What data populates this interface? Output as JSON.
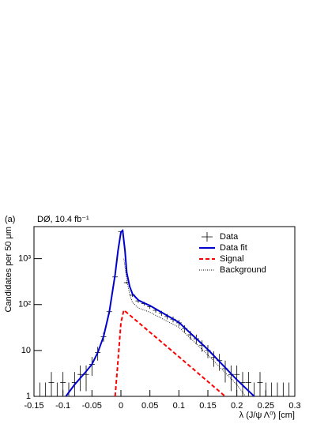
{
  "chart_data": {
    "type": "line",
    "panel": "(a)",
    "title": "DØ, 10.4 fb⁻¹",
    "xlabel": "λ (J/ψ Λ⁰) [cm]",
    "ylabel": "Candidates per 50 μm",
    "xlim": [
      -0.15,
      0.3
    ],
    "xticks": [
      -0.15,
      -0.1,
      -0.05,
      0,
      0.05,
      0.1,
      0.15,
      0.2,
      0.25,
      0.3
    ],
    "ylim": [
      1,
      5000
    ],
    "yscale": "log",
    "yticks": [
      1,
      10,
      {
        "value": 100,
        "label": "10²"
      },
      {
        "value": 1000,
        "label": "10³"
      }
    ],
    "legend": "upper right",
    "series": [
      {
        "name": "Data",
        "color": "#000000",
        "style": "points",
        "x": [
          -0.14,
          -0.13,
          -0.12,
          -0.11,
          -0.1,
          -0.09,
          -0.08,
          -0.07,
          -0.06,
          -0.05,
          -0.04,
          -0.03,
          -0.02,
          -0.01,
          0,
          0.01,
          0.02,
          0.03,
          0.04,
          0.05,
          0.06,
          0.07,
          0.08,
          0.09,
          0.1,
          0.11,
          0.12,
          0.13,
          0.14,
          0.15,
          0.16,
          0.17,
          0.18,
          0.19,
          0.2,
          0.21,
          0.22,
          0.23,
          0.24,
          0.25,
          0.26,
          0.27,
          0.28,
          0.29
        ],
        "values": [
          1,
          1,
          2,
          1,
          2,
          1,
          2,
          3,
          3,
          5,
          9,
          20,
          70,
          400,
          3900,
          300,
          160,
          120,
          105,
          90,
          75,
          65,
          55,
          48,
          40,
          30,
          22,
          18,
          13,
          10,
          7,
          6,
          4,
          3,
          3,
          2,
          2,
          1,
          2,
          1,
          1,
          1,
          1,
          1
        ],
        "errors": [
          1,
          1,
          1.4,
          1,
          1.4,
          1,
          1.4,
          1.7,
          1.7,
          2.2,
          3,
          4.5,
          8.4,
          20,
          62,
          17,
          13,
          11,
          10,
          9.5,
          8.7,
          8,
          7.4,
          6.9,
          6.3,
          5.5,
          4.7,
          4.2,
          3.6,
          3.2,
          2.6,
          2.4,
          2,
          1.7,
          1.7,
          1.4,
          1.4,
          1,
          1.4,
          1,
          1,
          1,
          1,
          1
        ]
      },
      {
        "name": "Data fit",
        "color": "#0000cc",
        "style": "solid",
        "x": [
          -0.095,
          -0.08,
          -0.06,
          -0.05,
          -0.04,
          -0.03,
          -0.02,
          -0.01,
          -0.005,
          0,
          0.003,
          0.007,
          0.01,
          0.015,
          0.02,
          0.03,
          0.04,
          0.05,
          0.1,
          0.15,
          0.2,
          0.23
        ],
        "values": [
          1,
          1.8,
          3.5,
          5,
          9,
          20,
          70,
          450,
          1500,
          3800,
          4100,
          1500,
          500,
          250,
          170,
          125,
          108,
          95,
          41,
          10.5,
          2.3,
          1
        ]
      },
      {
        "name": "Signal",
        "color": "#ff0000",
        "style": "dashed",
        "x": [
          -0.01,
          -0.005,
          0,
          0.005,
          0.05,
          0.1,
          0.15,
          0.18
        ],
        "values": [
          1,
          6,
          40,
          76,
          25,
          7.3,
          2.1,
          1
        ]
      },
      {
        "name": "Background",
        "color": "#000000",
        "style": "dotted",
        "x": [
          0.005,
          0.01,
          0.015,
          0.02,
          0.03,
          0.05,
          0.1,
          0.15,
          0.2,
          0.215
        ],
        "values": [
          1000,
          350,
          170,
          110,
          85,
          68,
          32,
          8,
          1.8,
          1
        ]
      }
    ]
  }
}
